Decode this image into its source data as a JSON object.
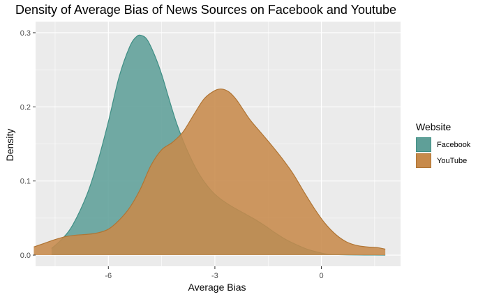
{
  "chart_data": {
    "type": "area",
    "title": "Density of Average Bias of News Sources on Facebook and Youtube",
    "xlabel": "Average Bias",
    "ylabel": "Density",
    "xlim": [
      -8.05,
      2.23
    ],
    "ylim": [
      -0.015,
      0.315
    ],
    "x_ticks": [
      -6,
      -3,
      0
    ],
    "x_tick_labels": [
      "-6",
      "-3",
      "0"
    ],
    "y_ticks": [
      0.0,
      0.1,
      0.2,
      0.3
    ],
    "y_tick_labels": [
      "0.0",
      "0.1",
      "0.2",
      "0.3"
    ],
    "grid": true,
    "legend": {
      "title": "Website",
      "position": "right"
    },
    "series": [
      {
        "name": "Facebook",
        "fill": "#5f9f98",
        "line": "#3f8f85",
        "x": [
          -7.6,
          -7.3,
          -7.0,
          -6.6,
          -6.3,
          -6.0,
          -5.7,
          -5.4,
          -5.2,
          -5.05,
          -4.9,
          -4.7,
          -4.5,
          -4.3,
          -4.1,
          -3.9,
          -3.7,
          -3.5,
          -3.3,
          -3.1,
          -2.9,
          -2.7,
          -2.5,
          -2.2,
          -1.9,
          -1.6,
          -1.3,
          -1.0,
          -0.7,
          -0.4,
          -0.1,
          0.2,
          0.6,
          1.0,
          1.5,
          1.8
        ],
        "y": [
          0.009,
          0.022,
          0.041,
          0.082,
          0.126,
          0.18,
          0.24,
          0.281,
          0.295,
          0.296,
          0.29,
          0.27,
          0.244,
          0.212,
          0.181,
          0.155,
          0.133,
          0.114,
          0.099,
          0.087,
          0.078,
          0.071,
          0.065,
          0.057,
          0.049,
          0.04,
          0.03,
          0.021,
          0.014,
          0.008,
          0.004,
          0.001,
          0.0005,
          0.0002,
          0.0001,
          0.0
        ]
      },
      {
        "name": "YouTube",
        "fill": "#c78a4b",
        "line": "#b07534",
        "x": [
          -8.1,
          -7.8,
          -7.5,
          -7.2,
          -6.9,
          -6.6,
          -6.3,
          -6.0,
          -5.7,
          -5.4,
          -5.1,
          -4.8,
          -4.5,
          -4.2,
          -3.9,
          -3.6,
          -3.3,
          -3.0,
          -2.8,
          -2.6,
          -2.4,
          -2.2,
          -2.0,
          -1.7,
          -1.4,
          -1.1,
          -0.8,
          -0.5,
          -0.2,
          0.1,
          0.4,
          0.7,
          1.0,
          1.3,
          1.6,
          1.8
        ],
        "y": [
          0.011,
          0.016,
          0.021,
          0.025,
          0.027,
          0.028,
          0.03,
          0.035,
          0.047,
          0.064,
          0.089,
          0.121,
          0.142,
          0.152,
          0.166,
          0.189,
          0.211,
          0.222,
          0.224,
          0.22,
          0.21,
          0.196,
          0.182,
          0.165,
          0.148,
          0.13,
          0.11,
          0.086,
          0.063,
          0.043,
          0.028,
          0.018,
          0.013,
          0.011,
          0.01,
          0.008
        ]
      }
    ]
  }
}
